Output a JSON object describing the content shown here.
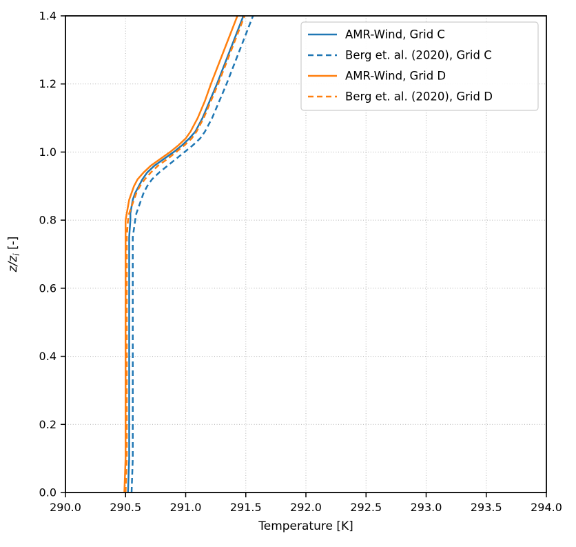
{
  "chart_data": {
    "type": "line",
    "title": "",
    "xlabel": "Temperature [K]",
    "ylabel": "z/zᵢ [-]",
    "ylabel_parts": {
      "main": "z/z",
      "sub": "i",
      "suffix": " [-]"
    },
    "xlim": [
      290.0,
      294.0
    ],
    "ylim": [
      0.0,
      1.4
    ],
    "xticks": [
      290.0,
      290.5,
      291.0,
      291.5,
      292.0,
      292.5,
      293.0,
      293.5,
      294.0
    ],
    "xtick_labels": [
      "290.0",
      "290.5",
      "291.0",
      "291.5",
      "292.0",
      "292.5",
      "293.0",
      "293.5",
      "294.0"
    ],
    "yticks": [
      0.0,
      0.2,
      0.4,
      0.6,
      0.8,
      1.0,
      1.2,
      1.4
    ],
    "ytick_labels": [
      "0.0",
      "0.2",
      "0.4",
      "0.6",
      "0.8",
      "1.0",
      "1.2",
      "1.4"
    ],
    "grid": {
      "on": true,
      "style": "dotted",
      "color": "#b8b8b8"
    },
    "axes_color": "#000000",
    "colors": {
      "blue": "#1f77b4",
      "orange": "#ff7f0e"
    },
    "legend": {
      "position": "upper right",
      "border_color": "#cccccc",
      "background": "#ffffff"
    },
    "series": [
      {
        "name": "AMR-Wind, Grid C",
        "color": "#1f77b4",
        "style": "solid",
        "z": [
          0,
          0.1,
          0.2,
          0.3,
          0.4,
          0.5,
          0.6,
          0.7,
          0.75,
          0.8,
          0.82,
          0.84,
          0.86,
          0.88,
          0.9,
          0.92,
          0.94,
          0.96,
          0.98,
          1.0,
          1.02,
          1.04,
          1.06,
          1.08,
          1.1,
          1.15,
          1.2,
          1.3,
          1.4
        ],
        "T": [
          290.52,
          290.53,
          290.53,
          290.53,
          290.53,
          290.53,
          290.53,
          290.53,
          290.53,
          290.54,
          290.54,
          290.55,
          290.56,
          290.58,
          290.61,
          290.64,
          290.68,
          290.74,
          290.82,
          290.9,
          290.97,
          291.03,
          291.08,
          291.11,
          291.14,
          291.2,
          291.26,
          291.37,
          291.48
        ]
      },
      {
        "name": "Berg et. al. (2020), Grid C",
        "color": "#1f77b4",
        "style": "dashed",
        "z": [
          0,
          0.1,
          0.2,
          0.3,
          0.4,
          0.5,
          0.6,
          0.7,
          0.75,
          0.8,
          0.82,
          0.84,
          0.86,
          0.88,
          0.9,
          0.92,
          0.94,
          0.96,
          0.98,
          1.0,
          1.02,
          1.04,
          1.06,
          1.08,
          1.1,
          1.15,
          1.2,
          1.3,
          1.4
        ],
        "T": [
          290.55,
          290.56,
          290.56,
          290.56,
          290.56,
          290.56,
          290.56,
          290.56,
          290.56,
          290.58,
          290.59,
          290.61,
          290.63,
          290.65,
          290.68,
          290.72,
          290.78,
          290.85,
          290.92,
          290.99,
          291.06,
          291.12,
          291.16,
          291.19,
          291.22,
          291.28,
          291.34,
          291.45,
          291.56
        ]
      },
      {
        "name": "AMR-Wind, Grid D",
        "color": "#ff7f0e",
        "style": "solid",
        "z": [
          0,
          0.1,
          0.2,
          0.3,
          0.4,
          0.5,
          0.6,
          0.7,
          0.75,
          0.8,
          0.82,
          0.84,
          0.86,
          0.88,
          0.9,
          0.92,
          0.94,
          0.96,
          0.98,
          1.0,
          1.02,
          1.04,
          1.06,
          1.08,
          1.1,
          1.15,
          1.2,
          1.3,
          1.4
        ],
        "T": [
          290.49,
          290.5,
          290.5,
          290.5,
          290.5,
          290.5,
          290.5,
          290.5,
          290.5,
          290.5,
          290.51,
          290.52,
          290.53,
          290.55,
          290.57,
          290.6,
          290.65,
          290.71,
          290.79,
          290.87,
          290.94,
          291.0,
          291.04,
          291.07,
          291.1,
          291.16,
          291.21,
          291.32,
          291.43
        ]
      },
      {
        "name": "Berg et. al. (2020), Grid D",
        "color": "#ff7f0e",
        "style": "dashed",
        "z": [
          0,
          0.1,
          0.2,
          0.3,
          0.4,
          0.5,
          0.6,
          0.7,
          0.75,
          0.8,
          0.82,
          0.84,
          0.86,
          0.88,
          0.9,
          0.92,
          0.94,
          0.96,
          0.98,
          1.0,
          1.02,
          1.04,
          1.06,
          1.08,
          1.1,
          1.15,
          1.2,
          1.3,
          1.4
        ],
        "T": [
          290.5,
          290.51,
          290.51,
          290.51,
          290.51,
          290.51,
          290.51,
          290.51,
          290.51,
          290.52,
          290.53,
          290.55,
          290.57,
          290.59,
          290.62,
          290.66,
          290.71,
          290.77,
          290.85,
          290.92,
          290.99,
          291.05,
          291.09,
          291.12,
          291.15,
          291.21,
          291.27,
          291.38,
          291.49
        ]
      }
    ]
  }
}
